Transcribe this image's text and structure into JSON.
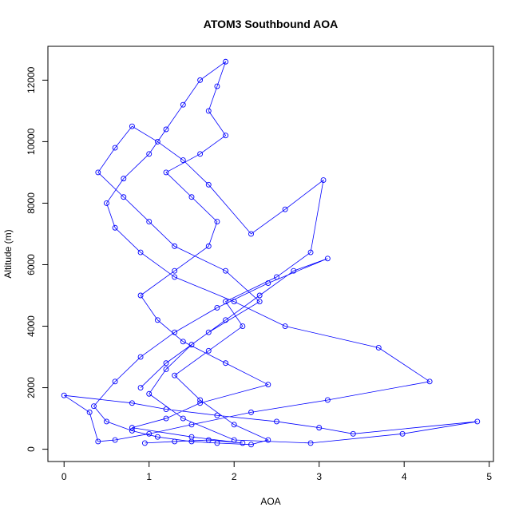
{
  "chart_data": {
    "type": "line",
    "title": "ATOM3 Southbound AOA",
    "x_label": "AOA",
    "y_label": "Altitude (m)",
    "color": "#0000ff",
    "x": [
      0.95,
      1.3,
      1.7,
      2.1,
      1.5,
      0.8,
      1.2,
      1.6,
      2.4,
      1.9,
      1.4,
      1.1,
      0.9,
      1.3,
      1.7,
      1.8,
      1.5,
      1.2,
      1.6,
      1.9,
      1.7,
      1.8,
      1.9,
      1.6,
      1.4,
      1.2,
      1.0,
      0.7,
      0.5,
      0.6,
      0.9,
      1.3,
      2.0,
      2.6,
      3.7,
      4.3,
      3.1,
      2.2,
      1.5,
      1.0,
      0.6,
      0.4,
      0.3,
      0.0,
      0.8,
      1.2,
      1.8,
      2.5,
      3.0,
      3.4,
      4.86,
      3.98,
      2.9,
      2.0,
      1.4,
      1.0,
      1.2,
      1.5,
      1.9,
      2.3,
      2.7,
      3.1,
      2.4,
      1.8,
      1.3,
      0.9,
      0.6,
      0.35,
      0.5,
      0.8,
      1.1,
      1.5,
      1.8,
      2.2,
      2.4,
      2.0,
      1.6,
      1.3,
      1.7,
      2.1,
      1.9,
      2.5,
      2.9,
      3.05,
      2.6,
      2.2,
      1.7,
      1.4,
      1.1,
      0.8,
      0.6,
      0.4,
      0.7,
      1.0,
      1.3,
      1.9,
      2.3,
      1.7,
      1.2,
      0.9
    ],
    "values": [
      200,
      250,
      300,
      200,
      400,
      700,
      1000,
      1500,
      2100,
      2800,
      3500,
      4200,
      5000,
      5800,
      6600,
      7400,
      8200,
      9000,
      9600,
      10200,
      11000,
      11800,
      12600,
      12000,
      11200,
      10400,
      9600,
      8800,
      8000,
      7200,
      6400,
      5600,
      4800,
      4000,
      3300,
      2200,
      1600,
      1200,
      800,
      500,
      300,
      250,
      1200,
      1750,
      1500,
      1300,
      1100,
      900,
      700,
      500,
      900,
      500,
      200,
      300,
      1000,
      1800,
      2600,
      3400,
      4200,
      5000,
      5800,
      6200,
      5400,
      4600,
      3800,
      3000,
      2200,
      1400,
      900,
      600,
      400,
      250,
      200,
      150,
      300,
      800,
      1600,
      2400,
      3200,
      4000,
      4800,
      5600,
      6400,
      8750,
      7800,
      7000,
      8600,
      9400,
      10000,
      10500,
      9800,
      9000,
      8200,
      7400,
      6600,
      5800,
      4800,
      3800,
      2800,
      2000
    ],
    "xlim": [
      -0.19,
      5.05
    ],
    "ylim": [
      -400,
      13100
    ],
    "xticks": [
      0,
      1,
      2,
      3,
      4,
      5
    ],
    "yticks": [
      0,
      2000,
      4000,
      6000,
      8000,
      10000,
      12000
    ]
  }
}
